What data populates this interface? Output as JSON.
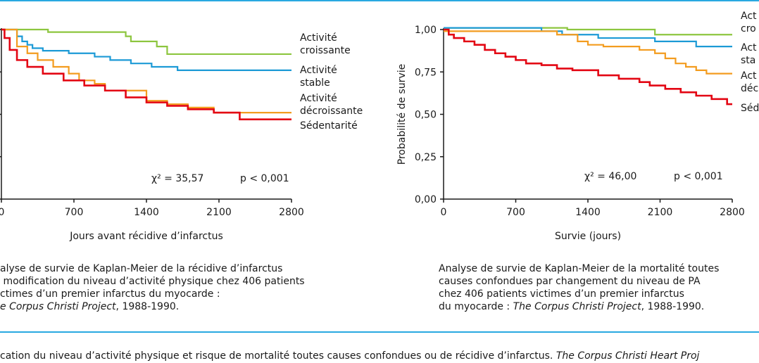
{
  "charts": [
    {
      "type": "line",
      "step": true,
      "xlabel": "Jours avant récidive d’infarctus",
      "ylabel": "",
      "xlim": [
        0,
        2800
      ],
      "ylim": [
        0,
        1
      ],
      "xticks": [
        "0",
        "700",
        "1400",
        "2100",
        "2800"
      ],
      "yticks": [],
      "stats": {
        "chi2": "χ² = 35,57",
        "p": "p < 0,001"
      },
      "legend": [
        {
          "text": "Activité\ncroissante",
          "series": 0
        },
        {
          "text": "Activité\nstable",
          "series": 1
        },
        {
          "text": "Activité\ndécroissante",
          "series": 2
        },
        {
          "text": "Sédentarité",
          "series": 3
        }
      ],
      "series": [
        {
          "name": "Activité croissante",
          "color": "#8dc63f",
          "x": [
            0,
            450,
            1200,
            1250,
            1500,
            1600,
            2800
          ],
          "y": [
            1.0,
            0.985,
            0.96,
            0.93,
            0.9,
            0.855,
            0.855
          ]
        },
        {
          "name": "Activité stable",
          "color": "#1c9ad6",
          "x": [
            0,
            150,
            200,
            250,
            300,
            400,
            650,
            900,
            1050,
            1250,
            1450,
            1700,
            2100,
            2800
          ],
          "y": [
            1.0,
            0.96,
            0.93,
            0.91,
            0.89,
            0.875,
            0.86,
            0.84,
            0.82,
            0.8,
            0.78,
            0.76,
            0.76,
            0.76
          ]
        },
        {
          "name": "Activité décroissante",
          "color": "#f39c1f",
          "x": [
            0,
            150,
            250,
            350,
            500,
            650,
            750,
            900,
            1000,
            1400,
            1600,
            1800,
            2050,
            2800
          ],
          "y": [
            1.0,
            0.9,
            0.86,
            0.82,
            0.78,
            0.74,
            0.7,
            0.68,
            0.64,
            0.58,
            0.56,
            0.54,
            0.51,
            0.51
          ]
        },
        {
          "name": "Sédentarité",
          "color": "#e30613",
          "x": [
            0,
            30,
            80,
            150,
            250,
            400,
            600,
            800,
            1000,
            1200,
            1400,
            1600,
            1800,
            2050,
            2300,
            2800
          ],
          "y": [
            1.0,
            0.95,
            0.88,
            0.82,
            0.78,
            0.74,
            0.7,
            0.67,
            0.64,
            0.6,
            0.57,
            0.55,
            0.53,
            0.51,
            0.47,
            0.47
          ]
        }
      ]
    },
    {
      "type": "line",
      "step": true,
      "xlabel": "Survie (jours)",
      "ylabel": "Probabilité de survie",
      "xlim": [
        0,
        2800
      ],
      "ylim": [
        0,
        1
      ],
      "xticks": [
        "0",
        "700",
        "1400",
        "2100",
        "2800"
      ],
      "yticks": [
        "0,00",
        "0,25",
        "0,50",
        "0,75",
        "1,00"
      ],
      "stats": {
        "chi2": "χ² = 46,00",
        "p": "p < 0,001"
      },
      "legend": [
        {
          "text": "Act\ncro",
          "series": 0
        },
        {
          "text": "Act\nsta",
          "series": 1
        },
        {
          "text": "Act\ndéc",
          "series": 2
        },
        {
          "text": "Séd",
          "series": 3
        }
      ],
      "series": [
        {
          "name": "",
          "color": "#8dc63f",
          "x": [
            0,
            1200,
            2050,
            2800
          ],
          "y": [
            1.01,
            1.0,
            0.97,
            0.97
          ]
        },
        {
          "name": "",
          "color": "#1c9ad6",
          "x": [
            0,
            950,
            1150,
            1500,
            2050,
            2450,
            2800
          ],
          "y": [
            1.01,
            0.99,
            0.97,
            0.95,
            0.93,
            0.9,
            0.9
          ]
        },
        {
          "name": "",
          "color": "#f39c1f",
          "x": [
            0,
            900,
            1100,
            1300,
            1400,
            1550,
            1900,
            2050,
            2150,
            2250,
            2350,
            2450,
            2550,
            2800
          ],
          "y": [
            0.99,
            0.99,
            0.97,
            0.93,
            0.91,
            0.9,
            0.88,
            0.86,
            0.83,
            0.8,
            0.78,
            0.76,
            0.74,
            0.74
          ]
        },
        {
          "name": "",
          "color": "#e30613",
          "x": [
            0,
            50,
            100,
            200,
            300,
            400,
            500,
            600,
            700,
            800,
            950,
            1100,
            1250,
            1500,
            1700,
            1900,
            2000,
            2150,
            2300,
            2450,
            2600,
            2750,
            2800
          ],
          "y": [
            1.0,
            0.97,
            0.95,
            0.93,
            0.91,
            0.88,
            0.86,
            0.84,
            0.82,
            0.8,
            0.79,
            0.77,
            0.76,
            0.73,
            0.71,
            0.69,
            0.67,
            0.65,
            0.63,
            0.61,
            0.59,
            0.56,
            0.56
          ]
        }
      ]
    }
  ],
  "captions": {
    "left": {
      "lines": [
        {
          "segments": [
            {
              "text": "alyse de survie de Kaplan-Meier de la récidive d’infarctus",
              "italic": false
            }
          ]
        },
        {
          "segments": [
            {
              "text": " modification du niveau d’activité physique chez 406 patients",
              "italic": false
            }
          ]
        },
        {
          "segments": [
            {
              "text": "ctimes d’un premier infarctus du myocarde :",
              "italic": false
            }
          ]
        },
        {
          "segments": [
            {
              "text": "e Corpus Christi Project",
              "italic": true
            },
            {
              "text": ", 1988-1990.",
              "italic": false
            }
          ]
        }
      ]
    },
    "right": {
      "lines": [
        {
          "segments": [
            {
              "text": "Analyse de survie de Kaplan-Meier de la mortalité toutes",
              "italic": false
            }
          ]
        },
        {
          "segments": [
            {
              "text": "causes confondues par changement du niveau de PA",
              "italic": false
            }
          ]
        },
        {
          "segments": [
            {
              "text": "chez 406 patients victimes d’un premier infarctus",
              "italic": false
            }
          ]
        },
        {
          "segments": [
            {
              "text": "du myocarde : ",
              "italic": false
            },
            {
              "text": "The Corpus Christi Project",
              "italic": true
            },
            {
              "text": ", 1988-1990.",
              "italic": false
            }
          ]
        }
      ]
    },
    "bottom": {
      "segments": [
        {
          "text": "cation du niveau d’activité physique et risque de mortalité toutes causes confondues ou de récidive d’infarctus. ",
          "italic": false
        },
        {
          "text": "The Corpus Christi Heart Proj",
          "italic": true
        }
      ]
    }
  },
  "colors": {
    "rule": "#29a9e1",
    "axis": "#1a1a1a"
  }
}
